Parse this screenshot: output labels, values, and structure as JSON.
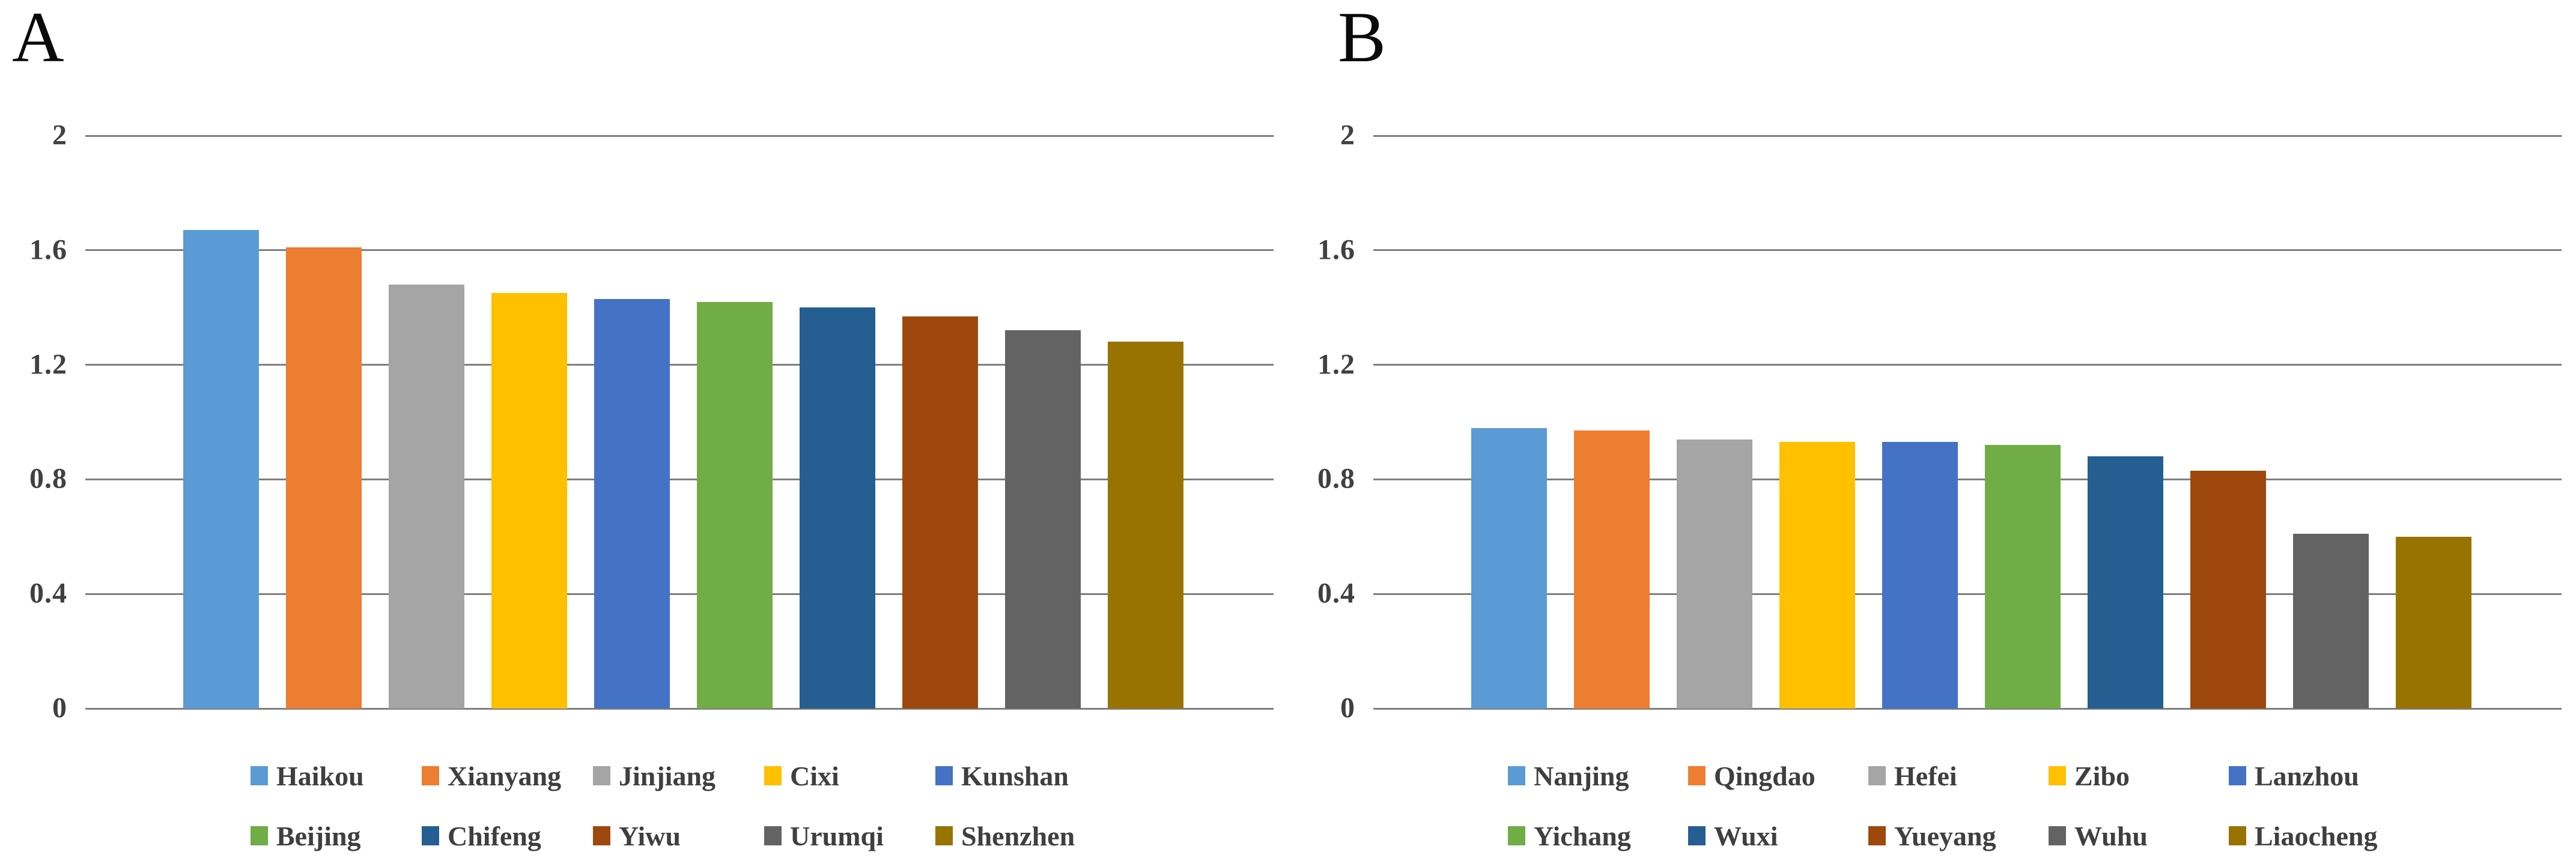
{
  "figure": {
    "background": "#ffffff",
    "gridline_color": "#7f7f7f",
    "axis_label_color": "#404040",
    "legend_text_color": "#3f3f3f",
    "title_color": "#0a0a0a"
  },
  "chart_data": [
    {
      "type": "bar",
      "panel_label": "A",
      "title": "",
      "xlabel": "",
      "ylabel": "",
      "categories": [
        "Haikou",
        "Xianyang",
        "Jinjiang",
        "Cixi",
        "Kunshan",
        "Beijing",
        "Chifeng",
        "Yiwu",
        "Urumqi",
        "Shenzhen"
      ],
      "values": [
        1.67,
        1.61,
        1.48,
        1.45,
        1.43,
        1.42,
        1.4,
        1.37,
        1.32,
        1.28
      ],
      "colors": [
        "#5B9BD5",
        "#ED7D31",
        "#A5A5A5",
        "#FFC000",
        "#4472C4",
        "#70AD47",
        "#255E91",
        "#9E480E",
        "#636363",
        "#997300"
      ],
      "ylim": [
        0,
        2
      ],
      "yticks": [
        "0",
        "0.4",
        "0.8",
        "1.2",
        "1.6",
        "2"
      ],
      "ytick_values": [
        0,
        0.4,
        0.8,
        1.2,
        1.6,
        2
      ],
      "grid": true,
      "legend_position": "bottom",
      "legend_rows": [
        [
          "Haikou",
          "Xianyang",
          "Jinjiang",
          "Cixi",
          "Kunshan"
        ],
        [
          "Beijing",
          "Chifeng",
          "Yiwu",
          "Urumqi",
          "Shenzhen"
        ]
      ]
    },
    {
      "type": "bar",
      "panel_label": "B",
      "title": "",
      "xlabel": "",
      "ylabel": "",
      "categories": [
        "Nanjing",
        "Qingdao",
        "Hefei",
        "Zibo",
        "Lanzhou",
        "Yichang",
        "Wuxi",
        "Yueyang",
        "Wuhu",
        "Liaocheng"
      ],
      "values": [
        0.98,
        0.97,
        0.94,
        0.93,
        0.93,
        0.92,
        0.88,
        0.83,
        0.61,
        0.6
      ],
      "colors": [
        "#5B9BD5",
        "#ED7D31",
        "#A5A5A5",
        "#FFC000",
        "#4472C4",
        "#70AD47",
        "#255E91",
        "#9E480E",
        "#636363",
        "#997300"
      ],
      "ylim": [
        0,
        2
      ],
      "yticks": [
        "0",
        "0.4",
        "0.8",
        "1.2",
        "1.6",
        "2"
      ],
      "ytick_values": [
        0,
        0.4,
        0.8,
        1.2,
        1.6,
        2
      ],
      "grid": true,
      "legend_position": "bottom",
      "legend_rows": [
        [
          "Nanjing",
          "Qingdao",
          "Hefei",
          "Zibo",
          "Lanzhou"
        ],
        [
          "Yichang",
          "Wuxi",
          "Yueyang",
          "Wuhu",
          "Liaocheng"
        ]
      ]
    }
  ]
}
